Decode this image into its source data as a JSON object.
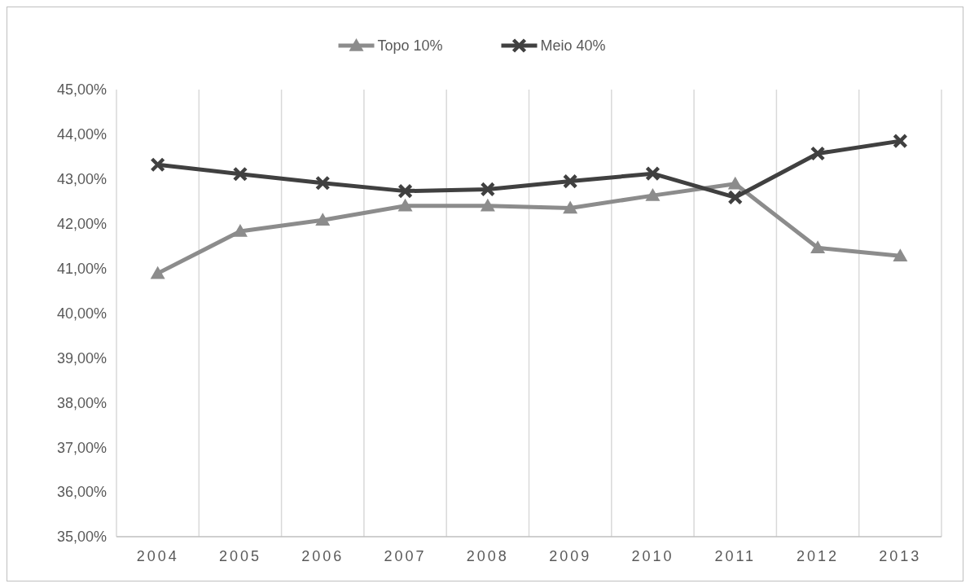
{
  "chart_data": {
    "type": "line",
    "categories": [
      "2004",
      "2005",
      "2006",
      "2007",
      "2008",
      "2009",
      "2010",
      "2011",
      "2012",
      "2013"
    ],
    "series": [
      {
        "name": "Topo 10%",
        "color": "#8c8c8c",
        "marker": "triangle",
        "values": [
          40.89,
          41.83,
          42.08,
          42.4,
          42.4,
          42.35,
          42.63,
          42.89,
          41.46,
          41.28
        ]
      },
      {
        "name": "Meio 40%",
        "color": "#404040",
        "marker": "cross",
        "values": [
          43.32,
          43.11,
          42.91,
          42.73,
          42.77,
          42.95,
          43.12,
          42.59,
          43.57,
          43.85
        ]
      }
    ],
    "ylim": [
      35,
      45
    ],
    "yticks": [
      {
        "value": 35,
        "label": "35,00%"
      },
      {
        "value": 36,
        "label": "36,00%"
      },
      {
        "value": 37,
        "label": "37,00%"
      },
      {
        "value": 38,
        "label": "38,00%"
      },
      {
        "value": 39,
        "label": "39,00%"
      },
      {
        "value": 40,
        "label": "40,00%"
      },
      {
        "value": 41,
        "label": "41,00%"
      },
      {
        "value": 42,
        "label": "42,00%"
      },
      {
        "value": 43,
        "label": "43,00%"
      },
      {
        "value": 44,
        "label": "44,00%"
      },
      {
        "value": 45,
        "label": "45,00%"
      }
    ],
    "grid": "x",
    "legend": "top"
  }
}
